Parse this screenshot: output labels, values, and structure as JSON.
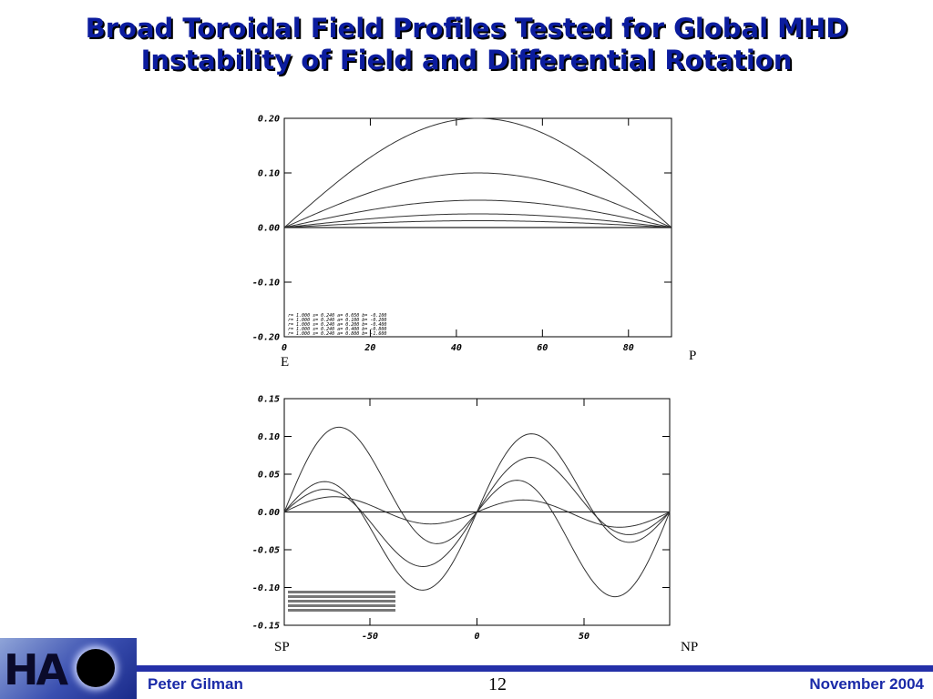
{
  "slide": {
    "title_line1": "Broad Toroidal Field Profiles Tested for Global MHD",
    "title_line2": "Instability of Field and Differential Rotation",
    "label_e": "E",
    "label_p": "P",
    "label_sp": "SP",
    "label_np": "NP",
    "footer_author": "Peter Gilman",
    "footer_page": "12",
    "footer_date": "November 2004",
    "logo_text": "HA"
  },
  "colors": {
    "title": "#0b1c9e",
    "footer_text": "#1a2aa8",
    "footer_bar": "#2430a8"
  },
  "chart_data": [
    {
      "type": "line",
      "xlim": [
        0,
        90
      ],
      "ylim": [
        -0.2,
        0.2
      ],
      "xticks": [
        0,
        20,
        40,
        60,
        80
      ],
      "xtick_labels": [
        "0",
        "20",
        "40",
        "60",
        "80"
      ],
      "yticks": [
        0.2,
        0.1,
        0.0,
        -0.1,
        -0.2
      ],
      "ytick_labels": [
        "0.20",
        "0.10",
        "0.00",
        "-0.10",
        "-0.20"
      ],
      "legend": [
        "r= 1.000 s=  0.240 a=  0.050 b= -0.100",
        "r= 1.000 s=  0.240 a=  0.100 b= -0.200",
        "r= 1.000 s=  0.240 a=  0.200 b= -0.400",
        "r= 1.000 s=  0.240 a=  0.400 b= -0.800",
        "r= 1.000 s=  0.240 a=  0.800 b= -1.600"
      ],
      "legend_position": "bottom-left",
      "function": "a*sin(2x)",
      "series": [
        {
          "amplitude": 0.0125
        },
        {
          "amplitude": 0.025
        },
        {
          "amplitude": 0.05
        },
        {
          "amplitude": 0.1
        },
        {
          "amplitude": 0.2
        }
      ]
    },
    {
      "type": "line",
      "xlim": [
        -90,
        90
      ],
      "ylim": [
        -0.15,
        0.15
      ],
      "xticks": [
        -50,
        0,
        50
      ],
      "xtick_labels": [
        "-50",
        "0",
        "50"
      ],
      "yticks": [
        0.15,
        0.1,
        0.05,
        0.0,
        -0.05,
        -0.1,
        -0.15
      ],
      "ytick_labels": [
        "0.15",
        "0.10",
        "0.05",
        "0.00",
        "-0.05",
        "-0.10",
        "-0.15"
      ],
      "legend_position": "bottom-left",
      "function": "p*sin(2x) + q*sin(4x)",
      "series": [
        {
          "p": 0.0,
          "q": 0.0
        },
        {
          "p": -0.003,
          "q": 0.018
        },
        {
          "p": 0.03,
          "q": 0.05
        },
        {
          "p": 0.045,
          "q": 0.07
        },
        {
          "p": -0.05,
          "q": 0.075
        }
      ]
    }
  ]
}
